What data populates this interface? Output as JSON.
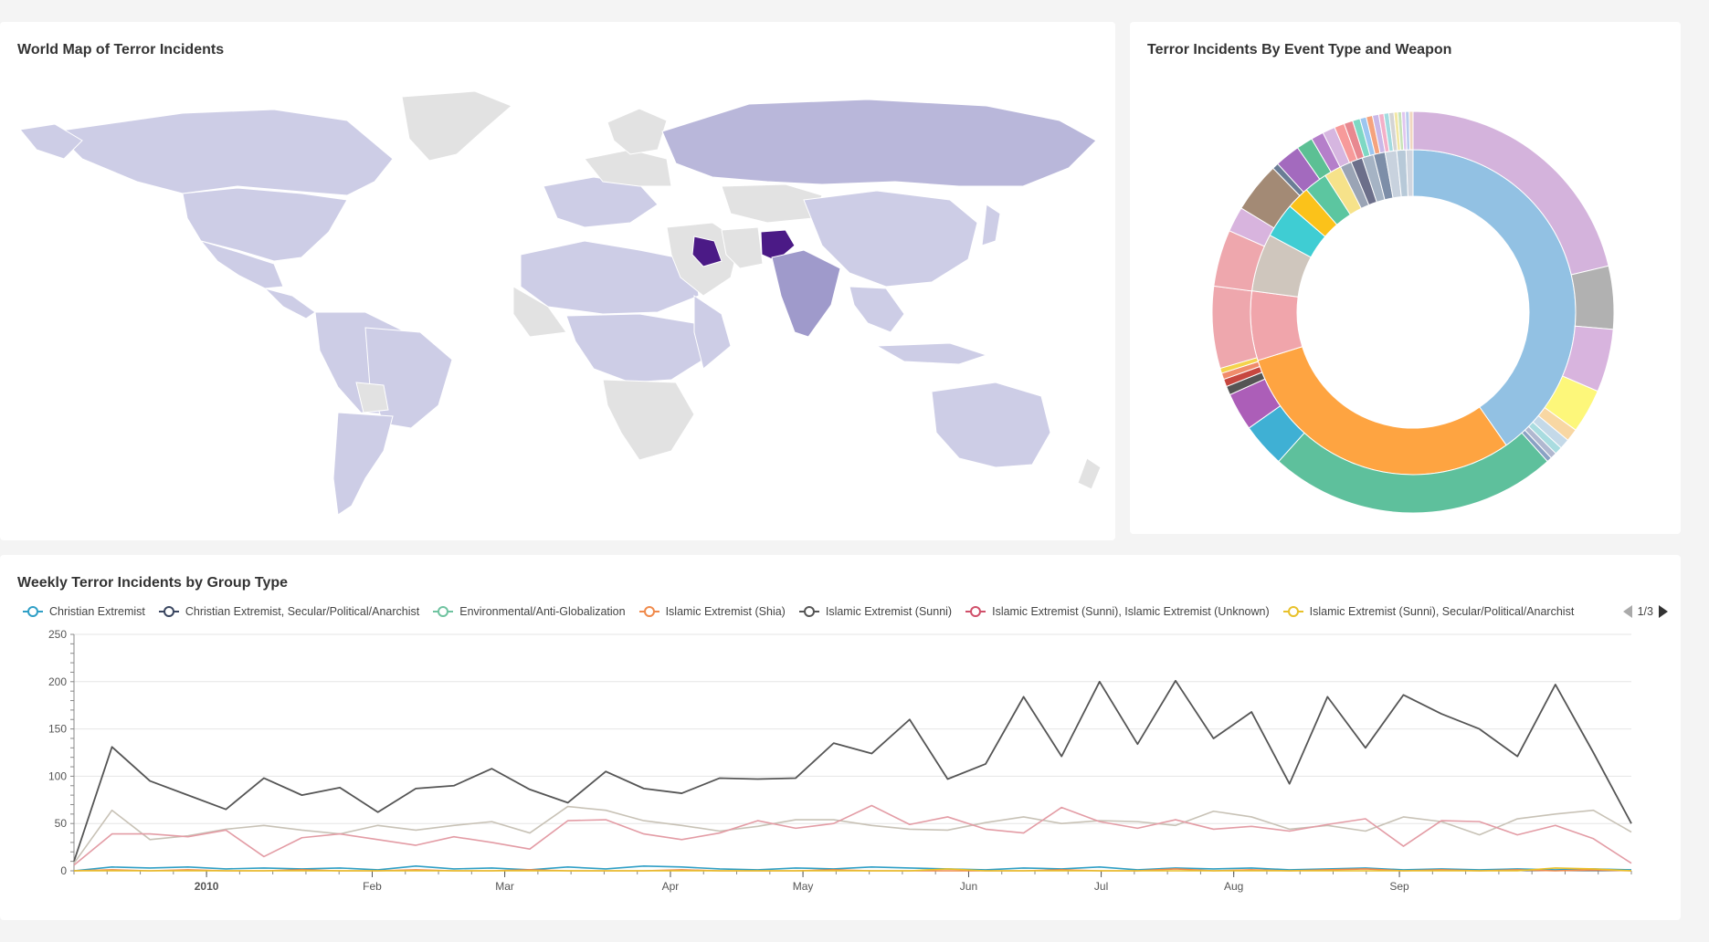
{
  "map_panel": {
    "title": "World Map of Terror Incidents"
  },
  "donut_panel": {
    "title": "Terror Incidents By Event Type and Weapon"
  },
  "line_panel": {
    "title": "Weekly Terror Incidents by Group Type",
    "pager_text": "1/3"
  },
  "chart_data": [
    {
      "type": "choropleth",
      "title": "World Map of Terror Incidents",
      "colors": {
        "none": "#e2e2e2",
        "low": "#cdcde6",
        "mid": "#b9b7da",
        "high": "#9f9acb",
        "top": "#4b1a86"
      },
      "regions": [
        {
          "region": "North America",
          "level": "low"
        },
        {
          "region": "South America",
          "level": "low"
        },
        {
          "region": "Russia",
          "level": "mid"
        },
        {
          "region": "Iraq",
          "level": "top"
        },
        {
          "region": "Afghanistan",
          "level": "top"
        },
        {
          "region": "Pakistan / India",
          "level": "high"
        },
        {
          "region": "Australia",
          "level": "low"
        },
        {
          "region": "Greenland",
          "level": "none"
        }
      ]
    },
    {
      "type": "pie",
      "title": "Terror Incidents By Event Type and Weapon",
      "inner_ring": [
        {
          "value": 35,
          "color": "#92c1e3"
        },
        {
          "value": 26,
          "color": "#fea441"
        },
        {
          "value": 6,
          "color": "#f0a5ab"
        },
        {
          "value": 5,
          "color": "#cfc6bd"
        },
        {
          "value": 3,
          "color": "#3fcdd3"
        },
        {
          "value": 2,
          "color": "#fbc21a"
        },
        {
          "value": 2,
          "color": "#5cc6a0"
        },
        {
          "value": 1.5,
          "color": "#f6e28a"
        },
        {
          "value": 1,
          "color": "#9aa4b5"
        },
        {
          "value": 1,
          "color": "#6c6f8a"
        },
        {
          "value": 1,
          "color": "#a5b3c4"
        },
        {
          "value": 1,
          "color": "#7d8ea8"
        },
        {
          "value": 1,
          "color": "#c8d2de"
        },
        {
          "value": 0.8,
          "color": "#b7c9d8"
        },
        {
          "value": 0.6,
          "color": "#d0d6e0"
        }
      ],
      "outer_ring": [
        {
          "value": 21,
          "color": "#d4b3dc"
        },
        {
          "value": 5,
          "color": "#b1b1b1"
        },
        {
          "value": 5,
          "color": "#d8b4de"
        },
        {
          "value": 3.5,
          "color": "#fdf77a"
        },
        {
          "value": 1,
          "color": "#f8d7a3"
        },
        {
          "value": 0.8,
          "color": "#c4d9e8"
        },
        {
          "value": 0.6,
          "color": "#a9dce0"
        },
        {
          "value": 0.5,
          "color": "#b0b8d0"
        },
        {
          "value": 0.4,
          "color": "#8aa2c4"
        },
        {
          "value": 23,
          "color": "#5ec09c"
        },
        {
          "value": 3.5,
          "color": "#3fb0d4"
        },
        {
          "value": 3,
          "color": "#ac5eb8"
        },
        {
          "value": 0.7,
          "color": "#555555"
        },
        {
          "value": 0.6,
          "color": "#c7473f"
        },
        {
          "value": 0.5,
          "color": "#f08c6b"
        },
        {
          "value": 0.4,
          "color": "#f4d34c"
        },
        {
          "value": 6.5,
          "color": "#eea7ad"
        },
        {
          "value": 4.5,
          "color": "#eea7ad"
        },
        {
          "value": 2,
          "color": "#d8b4de"
        },
        {
          "value": 4,
          "color": "#a38a75"
        },
        {
          "value": 0.5,
          "color": "#6a7d95"
        },
        {
          "value": 2,
          "color": "#a36abe"
        },
        {
          "value": 1.3,
          "color": "#5cc094"
        },
        {
          "value": 1,
          "color": "#b57fca"
        },
        {
          "value": 1,
          "color": "#d6b6e0"
        },
        {
          "value": 0.8,
          "color": "#f79a9a"
        },
        {
          "value": 0.7,
          "color": "#e88890"
        },
        {
          "value": 0.6,
          "color": "#7ed8c4"
        },
        {
          "value": 0.5,
          "color": "#9cc6f0"
        },
        {
          "value": 0.5,
          "color": "#f5a37e"
        },
        {
          "value": 0.5,
          "color": "#c9b8e8"
        },
        {
          "value": 0.4,
          "color": "#f3b0c8"
        },
        {
          "value": 0.4,
          "color": "#a2dbe0"
        },
        {
          "value": 0.4,
          "color": "#d4d4d4"
        },
        {
          "value": 0.3,
          "color": "#f2e7a4"
        },
        {
          "value": 0.3,
          "color": "#c8e3b8"
        },
        {
          "value": 0.3,
          "color": "#e0c6f0"
        },
        {
          "value": 0.3,
          "color": "#b8ccec"
        },
        {
          "value": 0.3,
          "color": "#f0d7c0"
        }
      ]
    },
    {
      "type": "line",
      "title": "Weekly Terror Incidents by Group Type",
      "ylim": [
        0,
        250
      ],
      "yticks": [
        0,
        50,
        100,
        150,
        200,
        250
      ],
      "x_tick_labels": [
        {
          "label": "2010",
          "week": 4,
          "bold": true
        },
        {
          "label": "Feb",
          "week": 9
        },
        {
          "label": "Mar",
          "week": 13
        },
        {
          "label": "Apr",
          "week": 18
        },
        {
          "label": "May",
          "week": 22
        },
        {
          "label": "Jun",
          "week": 27
        },
        {
          "label": "Jul",
          "week": 31
        },
        {
          "label": "Aug",
          "week": 35
        },
        {
          "label": "Sep",
          "week": 40
        }
      ],
      "x_count": 47,
      "grid": true,
      "legend": {
        "placement": "top",
        "entries": [
          {
            "name": "Christian Extremist",
            "color": "#2f9fc6"
          },
          {
            "name": "Christian Extremist, Secular/Political/Anarchist",
            "color": "#3a4660"
          },
          {
            "name": "Environmental/Anti-Globalization",
            "color": "#6fc3a0"
          },
          {
            "name": "Islamic Extremist (Shia)",
            "color": "#f08a4b"
          },
          {
            "name": "Islamic Extremist (Sunni)",
            "color": "#555555"
          },
          {
            "name": "Islamic Extremist (Sunni), Islamic Extremist (Unknown)",
            "color": "#d0506a"
          },
          {
            "name": "Islamic Extremist (Sunni), Secular/Political/Anarchist",
            "color": "#e8c12a"
          }
        ]
      },
      "series": [
        {
          "name": "Islamic Extremist (Sunni)",
          "color": "#555555",
          "values": [
            10,
            131,
            95,
            80,
            65,
            98,
            80,
            88,
            62,
            87,
            90,
            108,
            86,
            72,
            105,
            87,
            82,
            98,
            97,
            98,
            135,
            124,
            160,
            97,
            113,
            184,
            121,
            200,
            134,
            201,
            140,
            168,
            92,
            184,
            130,
            186,
            166,
            150,
            121,
            197,
            125,
            50
          ]
        },
        {
          "color": "#c8c2b6",
          "values": [
            8,
            64,
            33,
            37,
            44,
            48,
            43,
            39,
            48,
            43,
            48,
            52,
            40,
            68,
            64,
            53,
            48,
            42,
            47,
            54,
            54,
            48,
            44,
            43,
            51,
            57,
            50,
            53,
            52,
            48,
            63,
            57,
            44,
            48,
            42,
            57,
            52,
            38,
            55,
            60,
            64,
            41
          ]
        },
        {
          "color": "#e39ca5",
          "values": [
            6,
            39,
            39,
            36,
            43,
            15,
            35,
            39,
            33,
            27,
            36,
            30,
            23,
            53,
            54,
            39,
            33,
            40,
            53,
            45,
            50,
            69,
            49,
            57,
            44,
            40,
            67,
            52,
            45,
            54,
            44,
            47,
            42,
            49,
            55,
            26,
            53,
            52,
            38,
            48,
            34,
            8
          ]
        },
        {
          "name": "Christian Extremist",
          "color": "#2f9fc6",
          "values": [
            0,
            4,
            3,
            4,
            2,
            3,
            2,
            3,
            1,
            5,
            2,
            3,
            1,
            4,
            2,
            5,
            4,
            2,
            1,
            3,
            2,
            4,
            3,
            2,
            1,
            3,
            2,
            4,
            1,
            3,
            2,
            3,
            1,
            2,
            3,
            1,
            2,
            1,
            2,
            1,
            2,
            1
          ]
        },
        {
          "name": "Islamic Extremist (Shia)",
          "color": "#f08a4b",
          "values": [
            0,
            1,
            0,
            1,
            0,
            0,
            1,
            0,
            0,
            1,
            0,
            0,
            1,
            0,
            0,
            0,
            1,
            0,
            0,
            0,
            1,
            0,
            0,
            0,
            0,
            0,
            1,
            0,
            0,
            2,
            0,
            1,
            0,
            1,
            2,
            0,
            1,
            0,
            1,
            0,
            1,
            0
          ]
        },
        {
          "name": "Islamic Extremist (Sunni), Secular/Political/Anarchist",
          "color": "#e8c12a",
          "values": [
            0,
            0,
            0,
            0,
            0,
            0,
            0,
            0,
            0,
            0,
            0,
            0,
            0,
            0,
            0,
            0,
            0,
            0,
            0,
            0,
            0,
            0,
            0,
            2,
            0,
            0,
            0,
            0,
            0,
            0,
            0,
            0,
            0,
            0,
            0,
            0,
            0,
            0,
            0,
            3,
            2,
            0
          ]
        }
      ]
    }
  ]
}
